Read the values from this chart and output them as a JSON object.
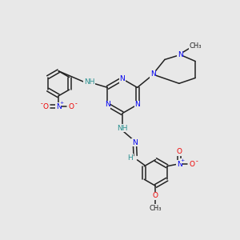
{
  "bg_color": "#e8e8e8",
  "bond_color": "#222222",
  "N_color": "#0000ee",
  "O_color": "#ee0000",
  "NH_color": "#2a9090",
  "C_color": "#222222",
  "font_size": 6.5,
  "lw": 1.1,
  "figsize": [
    3.0,
    3.0
  ],
  "dpi": 100,
  "xlim": [
    0,
    10
  ],
  "ylim": [
    0,
    10
  ]
}
